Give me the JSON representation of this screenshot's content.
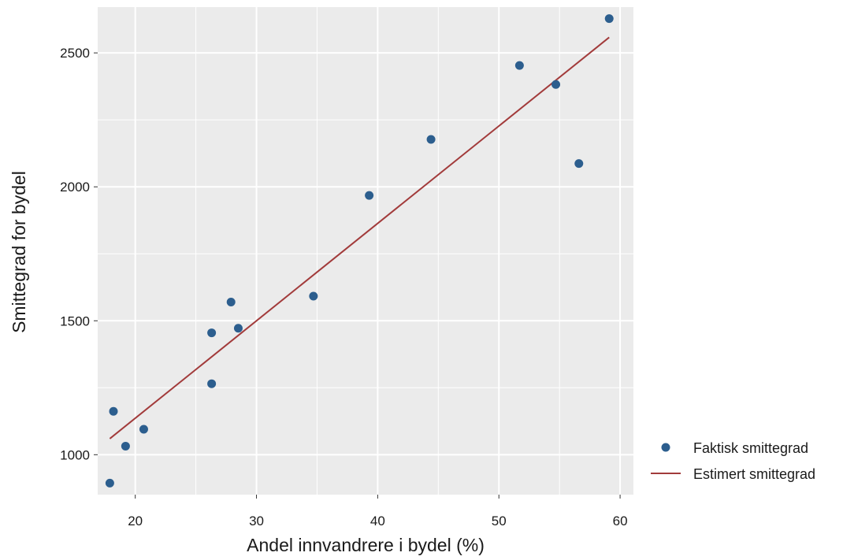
{
  "chart_data": {
    "type": "scatter",
    "xlabel": "Andel innvandrere i bydel (%)",
    "ylabel": "Smittegrad for bydel",
    "xlim": [
      16.9,
      61.1
    ],
    "ylim": [
      851,
      2671
    ],
    "x_ticks": [
      20,
      30,
      40,
      50,
      60
    ],
    "y_ticks": [
      1000,
      1500,
      2000,
      2500
    ],
    "grid": true,
    "legend_position": "right",
    "colors": {
      "panel": "#ebebeb",
      "grid": "#ffffff",
      "points": "#2c5e8e",
      "line": "#a23b3b"
    },
    "series": [
      {
        "name": "Faktisk smittegrad",
        "kind": "points",
        "x": [
          17.9,
          18.2,
          19.2,
          20.7,
          26.3,
          26.3,
          27.9,
          28.5,
          34.7,
          39.3,
          44.4,
          51.7,
          54.7,
          56.6,
          59.1
        ],
        "y": [
          894,
          1162,
          1032,
          1095,
          1455,
          1265,
          1570,
          1472,
          1592,
          1968,
          2177,
          2453,
          2382,
          2087,
          2628
        ]
      },
      {
        "name": "Estimert smittegrad",
        "kind": "line",
        "x": [
          17.9,
          59.1
        ],
        "y": [
          1060,
          2558
        ]
      }
    ]
  }
}
